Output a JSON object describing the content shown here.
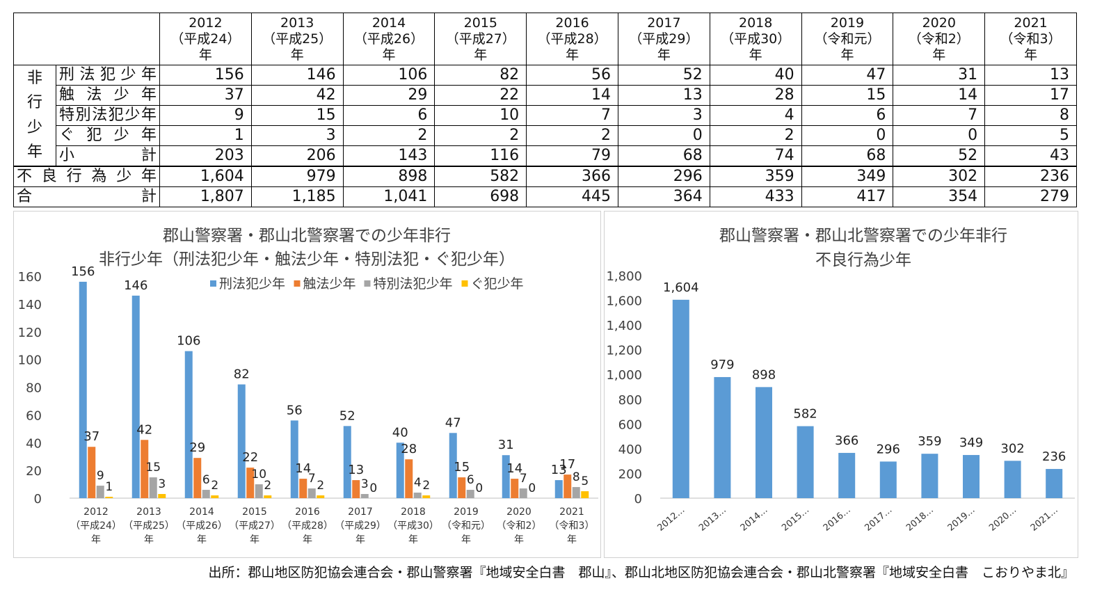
{
  "table": {
    "year_headers": [
      {
        "year": "2012",
        "era": "（平成24）",
        "suffix": "年"
      },
      {
        "year": "2013",
        "era": "（平成25）",
        "suffix": "年"
      },
      {
        "year": "2014",
        "era": "（平成26）",
        "suffix": "年"
      },
      {
        "year": "2015",
        "era": "（平成27）",
        "suffix": "年"
      },
      {
        "year": "2016",
        "era": "（平成28）",
        "suffix": "年"
      },
      {
        "year": "2017",
        "era": "（平成29）",
        "suffix": "年"
      },
      {
        "year": "2018",
        "era": "（平成30）",
        "suffix": "年"
      },
      {
        "year": "2019",
        "era": "（令和元）",
        "suffix": "年"
      },
      {
        "year": "2020",
        "era": "（令和2）",
        "suffix": "年"
      },
      {
        "year": "2021",
        "era": "（令和3）",
        "suffix": "年"
      }
    ],
    "group_label_chars": [
      "非",
      "行",
      "少",
      "年"
    ],
    "rows": [
      {
        "label_chars": [
          "刑",
          "法",
          "犯",
          "少",
          "年"
        ],
        "values": [
          "156",
          "146",
          "106",
          "82",
          "56",
          "52",
          "40",
          "47",
          "31",
          "13"
        ]
      },
      {
        "label_chars": [
          "触",
          "法",
          "少",
          "年"
        ],
        "values": [
          "37",
          "42",
          "29",
          "22",
          "14",
          "13",
          "28",
          "15",
          "14",
          "17"
        ]
      },
      {
        "label_chars": [
          "特",
          "別",
          "法",
          "犯",
          "少",
          "年"
        ],
        "values": [
          "9",
          "15",
          "6",
          "10",
          "7",
          "3",
          "4",
          "6",
          "7",
          "8"
        ]
      },
      {
        "label_chars": [
          "ぐ",
          "犯",
          "少",
          "年"
        ],
        "values": [
          "1",
          "3",
          "2",
          "2",
          "2",
          "0",
          "2",
          "0",
          "0",
          "5"
        ]
      },
      {
        "label_chars": [
          "小",
          "計"
        ],
        "values": [
          "203",
          "206",
          "143",
          "116",
          "79",
          "68",
          "74",
          "68",
          "52",
          "43"
        ]
      },
      {
        "label_chars": [
          "不",
          "良",
          "行",
          "為",
          "少",
          "年"
        ],
        "values": [
          "1,604",
          "979",
          "898",
          "582",
          "366",
          "296",
          "359",
          "349",
          "302",
          "236"
        ]
      },
      {
        "label_chars": [
          "合",
          "計"
        ],
        "values": [
          "1,807",
          "1,185",
          "1,041",
          "698",
          "445",
          "364",
          "433",
          "417",
          "354",
          "279"
        ]
      }
    ]
  },
  "chart_data": [
    {
      "type": "bar",
      "title": "郡山警察署・郡山北警察署での少年非行",
      "subtitle": "非行少年（刑法犯少年・触法少年・特別法犯・ぐ犯少年）",
      "categories": [
        [
          "2012",
          "（平成24）",
          "年"
        ],
        [
          "2013",
          "（平成25）",
          "年"
        ],
        [
          "2014",
          "（平成26）",
          "年"
        ],
        [
          "2015",
          "（平成27）",
          "年"
        ],
        [
          "2016",
          "（平成28）",
          "年"
        ],
        [
          "2017",
          "（平成29）",
          "年"
        ],
        [
          "2018",
          "（平成30）",
          "年"
        ],
        [
          "2019",
          "（令和元）",
          "年"
        ],
        [
          "2020",
          "（令和2）",
          "年"
        ],
        [
          "2021",
          "（令和3）",
          "年"
        ]
      ],
      "series": [
        {
          "name": "刑法犯少年",
          "color": "#5B9BD5",
          "values": [
            156,
            146,
            106,
            82,
            56,
            52,
            40,
            47,
            31,
            13
          ]
        },
        {
          "name": "触法少年",
          "color": "#ED7D31",
          "values": [
            37,
            42,
            29,
            22,
            14,
            13,
            28,
            15,
            14,
            17
          ]
        },
        {
          "name": "特別法犯少年",
          "color": "#A5A5A5",
          "values": [
            9,
            15,
            6,
            10,
            7,
            3,
            4,
            6,
            7,
            8
          ]
        },
        {
          "name": "ぐ犯少年",
          "color": "#FFC000",
          "values": [
            1,
            3,
            2,
            2,
            2,
            0,
            2,
            0,
            0,
            5
          ]
        }
      ],
      "ylim": [
        0,
        160
      ],
      "yticks": [
        "0",
        "20",
        "40",
        "60",
        "80",
        "100",
        "120",
        "140",
        "160"
      ],
      "legend": "top",
      "grid": false
    },
    {
      "type": "bar",
      "title": "郡山警察署・郡山北警察署での少年非行",
      "subtitle": "不良行為少年",
      "categories": [
        "2012…",
        "2013…",
        "2014…",
        "2015…",
        "2016…",
        "2017…",
        "2018…",
        "2019…",
        "2020…",
        "2021…"
      ],
      "series": [
        {
          "color": "#5B9BD5",
          "values": [
            1604,
            979,
            898,
            582,
            366,
            296,
            359,
            349,
            302,
            236
          ],
          "labels": [
            "1,604",
            "979",
            "898",
            "582",
            "366",
            "296",
            "359",
            "349",
            "302",
            "236"
          ]
        }
      ],
      "ylim": [
        0,
        1800
      ],
      "yticks": [
        "0",
        "200",
        "400",
        "600",
        "800",
        "1,000",
        "1,200",
        "1,400",
        "1,600",
        "1,800"
      ],
      "grid": false
    }
  ],
  "source": "出所：郡山地区防犯協会連合会・郡山警察署『地域安全白書　郡山』、郡山北地区防犯協会連合会・郡山北警察署『地域安全白書　こおりやま北』"
}
